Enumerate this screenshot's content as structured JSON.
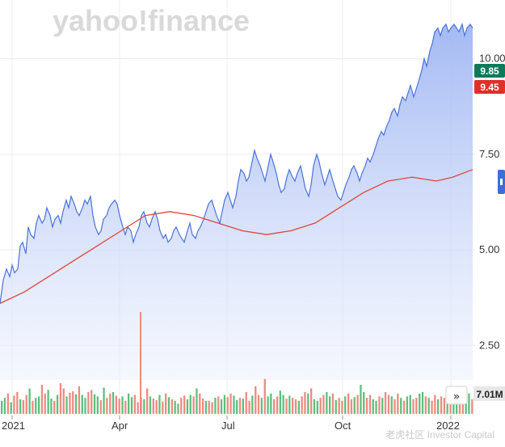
{
  "watermark": {
    "brand": "yahoo!finance",
    "corner": "老虎社区 Investor Capital"
  },
  "colors": {
    "price_line": "#4a72d9",
    "price_fill": "#c8d7fb",
    "ma_line": "#e0453a",
    "price_badge": "#0f7a5a",
    "ma_badge": "#e0302a",
    "vol_up": "#5dbf7d",
    "vol_down": "#ef8a7f"
  },
  "chart_data": {
    "type": "line",
    "title": "",
    "xlabel": "",
    "ylabel": "",
    "x_tick_labels": [
      "2021",
      "Apr",
      "Jul",
      "Oct",
      "2022"
    ],
    "y_tick_labels": [
      "2.50",
      "5.00",
      "7.50",
      "10.00"
    ],
    "ylim": [
      1.6,
      10.9
    ],
    "grid": true,
    "series": [
      {
        "name": "",
        "x": [
          0,
          4,
          8,
          12,
          15,
          18,
          22,
          25,
          28,
          32,
          35,
          38,
          42,
          45,
          48,
          52,
          55,
          58,
          62,
          65,
          68,
          72,
          75,
          78,
          82,
          85,
          88,
          92,
          95,
          98,
          102,
          105,
          108,
          112,
          115,
          118,
          122,
          125,
          128,
          132,
          135,
          138,
          142,
          145,
          148,
          152,
          155,
          158,
          162,
          165,
          168,
          172,
          175,
          178,
          182,
          185,
          188,
          192,
          195,
          198,
          202,
          205,
          208,
          212,
          215,
          218,
          222,
          225,
          228,
          232,
          235,
          238,
          242,
          245,
          248,
          252,
          255,
          258,
          262,
          265,
          268,
          272,
          275,
          278,
          282,
          285,
          288,
          292,
          295,
          298,
          302,
          305,
          308,
          312,
          315,
          318,
          322,
          325,
          328,
          332,
          335,
          338,
          342,
          345,
          348,
          352,
          355,
          358,
          362,
          365,
          368,
          372,
          375,
          378,
          382,
          385,
          388,
          392,
          395,
          398,
          402,
          405,
          408,
          412,
          415,
          418,
          422,
          425,
          428,
          432,
          435,
          438,
          442,
          445,
          448,
          452,
          455,
          458,
          462,
          465,
          468,
          472,
          475,
          478,
          482,
          485,
          488,
          492,
          495,
          498,
          502,
          505,
          508,
          512,
          515,
          518,
          522,
          525,
          528,
          532,
          535,
          538,
          542,
          545,
          548,
          552,
          555,
          558,
          562,
          565,
          568,
          572,
          575,
          578,
          582,
          585
        ],
        "values": [
          3.6,
          4.2,
          4.5,
          4.3,
          4.6,
          4.4,
          4.5,
          5.1,
          5.2,
          4.9,
          5.6,
          5.4,
          5.3,
          5.7,
          5.9,
          5.7,
          5.8,
          6.1,
          5.9,
          5.6,
          5.8,
          5.9,
          5.7,
          6.0,
          6.3,
          6.1,
          6.4,
          6.2,
          6.0,
          5.9,
          6.1,
          6.3,
          6.2,
          6.4,
          5.9,
          5.6,
          5.4,
          5.5,
          5.8,
          5.9,
          6.1,
          6.2,
          6.3,
          6.2,
          5.9,
          5.6,
          5.4,
          5.6,
          5.5,
          5.2,
          5.4,
          5.6,
          5.9,
          6.0,
          5.7,
          5.6,
          5.8,
          6.0,
          5.8,
          5.5,
          5.3,
          5.4,
          5.2,
          5.3,
          5.5,
          5.6,
          5.4,
          5.3,
          5.2,
          5.5,
          5.7,
          5.4,
          5.3,
          5.5,
          5.6,
          5.8,
          6.0,
          6.2,
          6.3,
          6.1,
          5.9,
          5.7,
          6.0,
          6.3,
          6.5,
          6.3,
          6.1,
          6.4,
          6.8,
          7.1,
          7.0,
          6.8,
          6.9,
          7.3,
          7.6,
          7.4,
          7.2,
          7.0,
          6.8,
          7.2,
          7.5,
          7.3,
          7.0,
          6.7,
          6.5,
          6.6,
          6.9,
          7.1,
          6.9,
          6.8,
          7.0,
          7.2,
          6.9,
          6.6,
          6.4,
          6.7,
          7.2,
          7.5,
          7.3,
          7.0,
          6.7,
          6.9,
          7.1,
          6.8,
          6.6,
          6.4,
          6.3,
          6.5,
          6.7,
          6.9,
          7.1,
          7.2,
          7.0,
          6.8,
          7.0,
          7.2,
          7.4,
          7.3,
          7.5,
          7.7,
          7.9,
          8.1,
          8.0,
          8.2,
          8.4,
          8.6,
          8.7,
          8.5,
          8.8,
          9.0,
          8.9,
          9.1,
          9.3,
          9.0,
          9.2,
          9.4,
          9.7,
          10.0,
          9.8,
          10.2,
          10.4,
          10.7,
          10.8,
          10.6,
          10.8,
          10.9,
          10.7,
          10.8,
          10.9,
          10.8,
          10.7,
          10.9,
          10.6,
          10.8,
          10.9,
          10.8
        ]
      },
      {
        "name": "",
        "x": [
          0,
          30,
          60,
          90,
          120,
          150,
          180,
          210,
          240,
          270,
          300,
          330,
          360,
          390,
          420,
          450,
          480,
          510,
          540,
          560,
          585
        ],
        "values": [
          3.6,
          3.9,
          4.3,
          4.7,
          5.1,
          5.5,
          5.9,
          6.0,
          5.9,
          5.7,
          5.5,
          5.4,
          5.5,
          5.7,
          6.1,
          6.5,
          6.8,
          6.9,
          6.8,
          6.9,
          7.1
        ]
      }
    ],
    "price_badge": "9.85",
    "ma_badge": "9.45",
    "volume_label": "7.01M",
    "volume": {
      "values": [
        18,
        22,
        28,
        16,
        25,
        30,
        20,
        19,
        26,
        35,
        18,
        22,
        24,
        40,
        28,
        33,
        21,
        18,
        26,
        42,
        35,
        24,
        29,
        31,
        27,
        38,
        26,
        22,
        30,
        33,
        27,
        24,
        19,
        36,
        22,
        28,
        30,
        25,
        21,
        24,
        18,
        28,
        23,
        26,
        16,
        22,
        20,
        35,
        24,
        21,
        19,
        26,
        17,
        28,
        23,
        20,
        18,
        14,
        22,
        25,
        20,
        26,
        24,
        35,
        28,
        21,
        18,
        18,
        16,
        22,
        24,
        20,
        26,
        23,
        28,
        25,
        19,
        22,
        21,
        30,
        18,
        25,
        38,
        26,
        22,
        48,
        24,
        28,
        20,
        24,
        32,
        26,
        21,
        25,
        22,
        20,
        18,
        24,
        30,
        28,
        35,
        20,
        18,
        22,
        26,
        30,
        24,
        28,
        19,
        22,
        18,
        24,
        28,
        20,
        23,
        26,
        40,
        30,
        22,
        26,
        20,
        18,
        24,
        22,
        30,
        26,
        24,
        20,
        28,
        22,
        18,
        24,
        26,
        20,
        22,
        28,
        30,
        24,
        22,
        18,
        26,
        20,
        24,
        22,
        28,
        30,
        20,
        22,
        26,
        18,
        24,
        28,
        20
      ],
      "spike_value": 105
    }
  }
}
